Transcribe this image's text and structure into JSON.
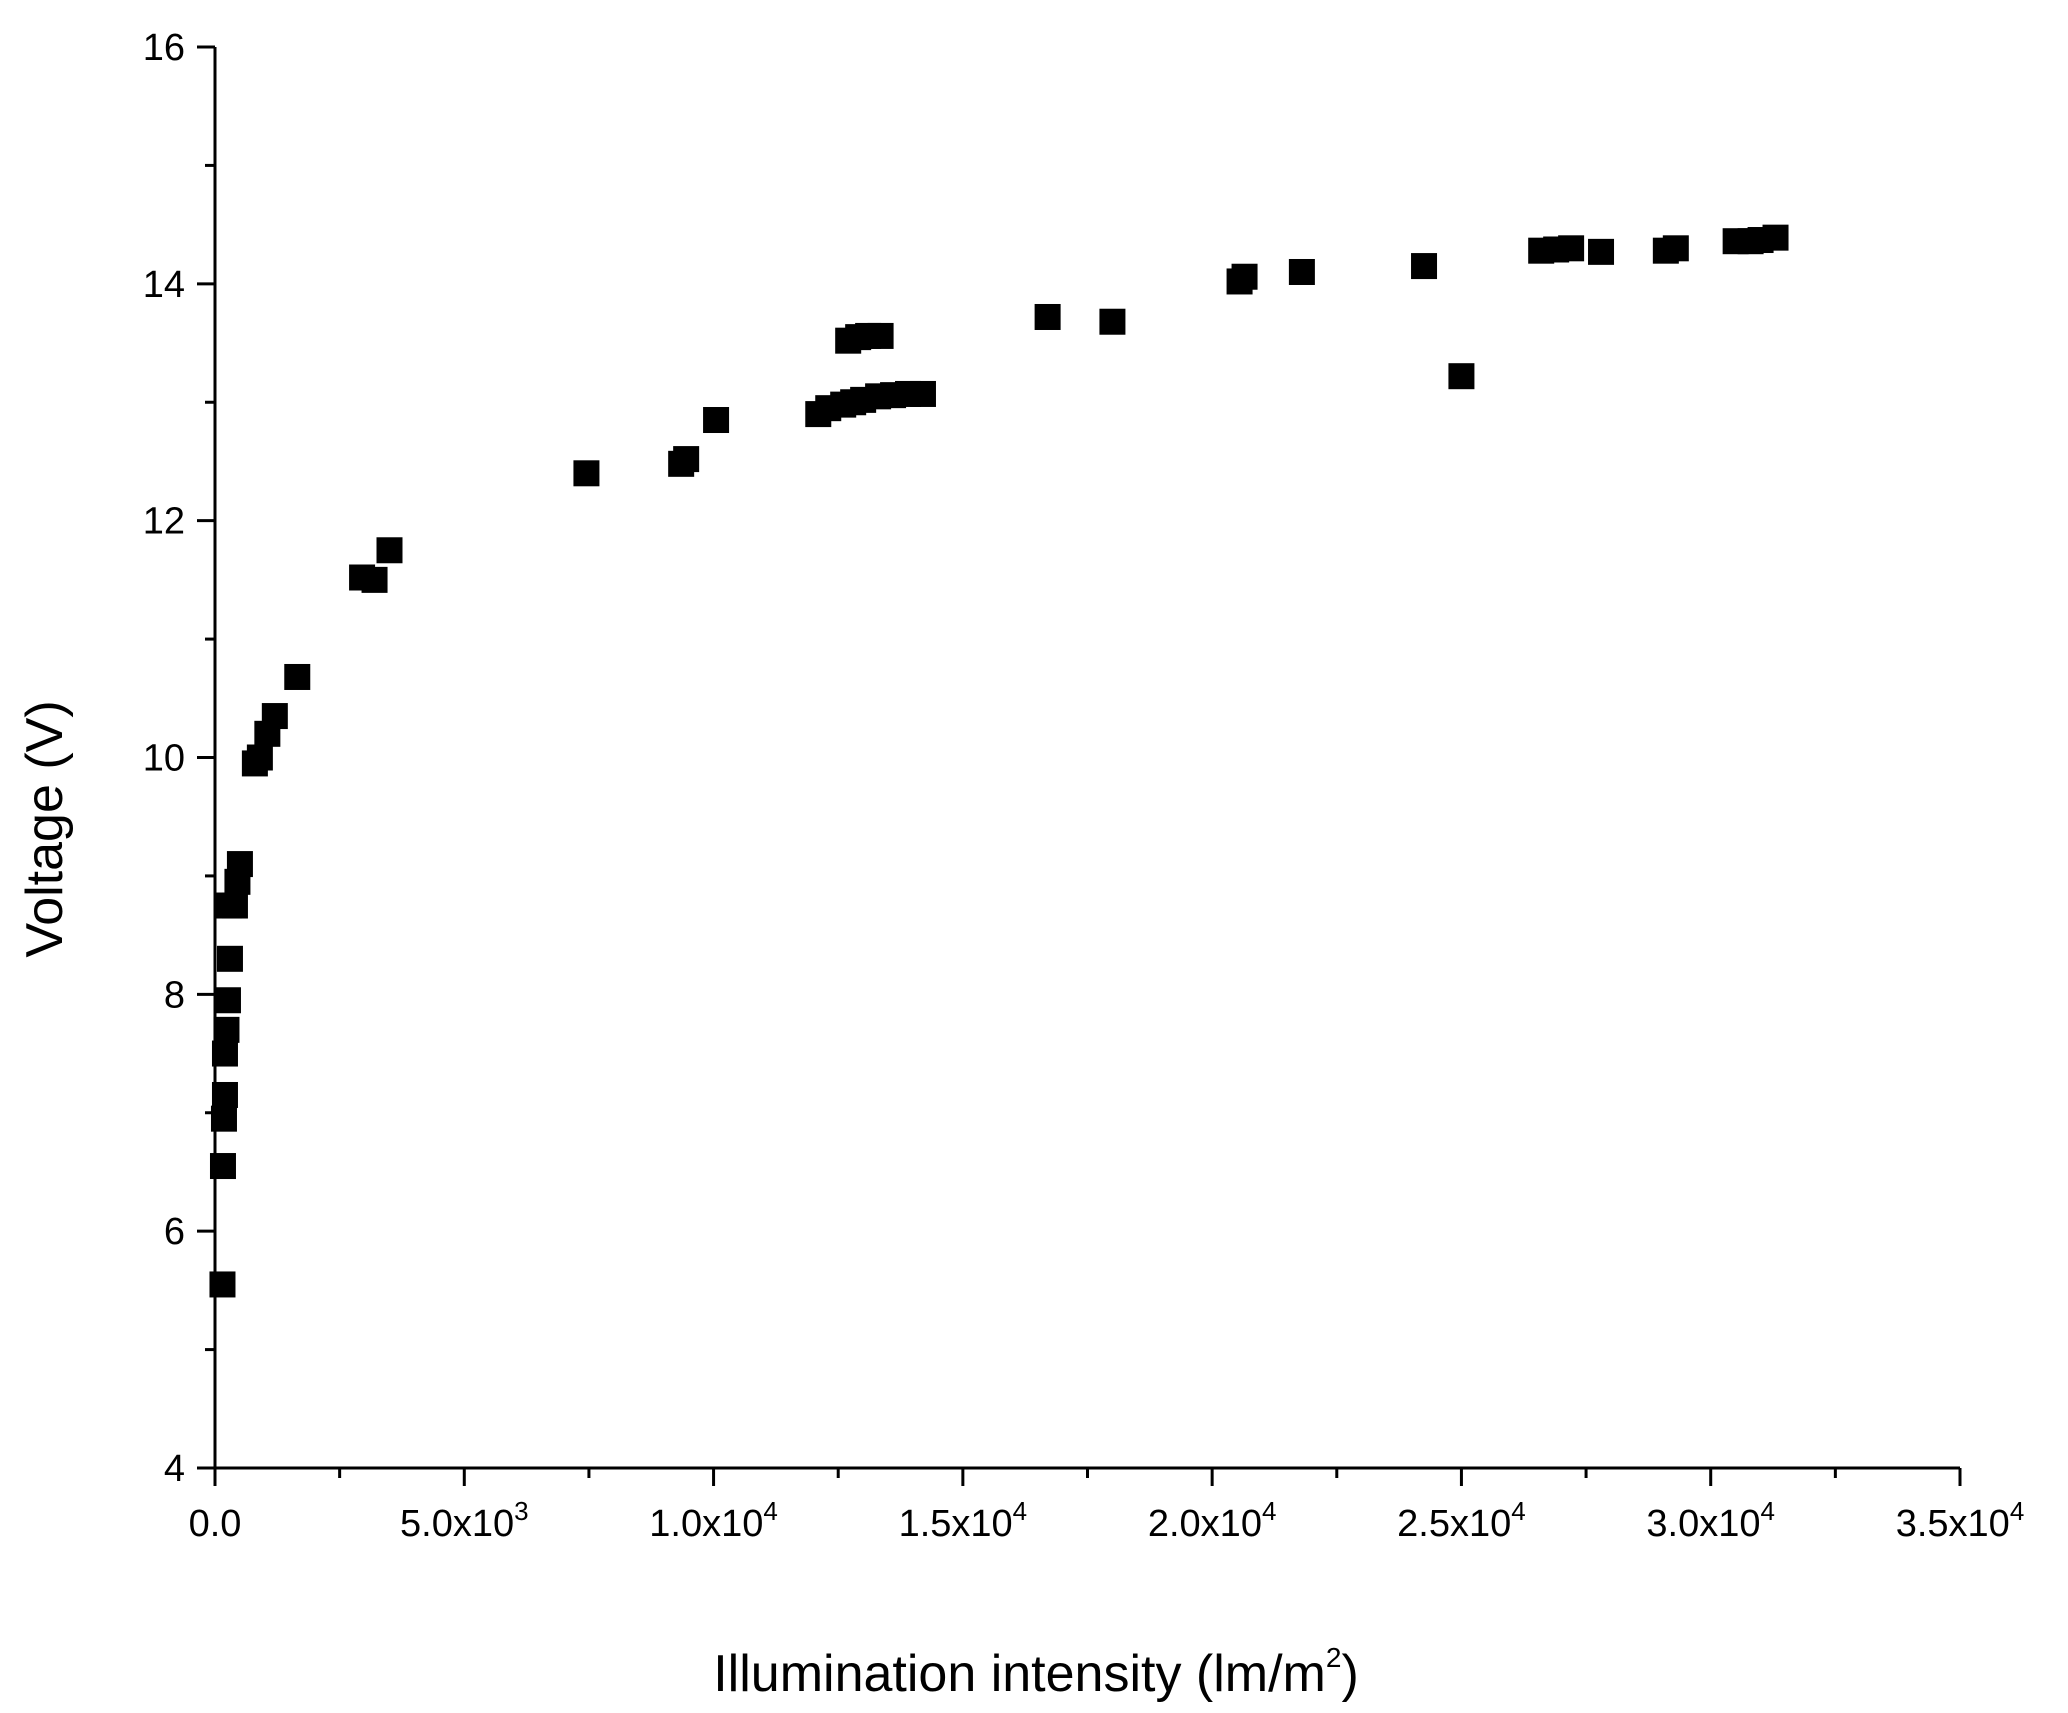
{
  "chart_data": {
    "type": "scatter",
    "title": "",
    "xlabel": "Illumination intensity (lm/m",
    "xlabel_sup": "2",
    "xlabel_suffix": ")",
    "ylabel": "Voltage (V)",
    "xlim": [
      0,
      35000
    ],
    "ylim": [
      4,
      16
    ],
    "grid": false,
    "marker": "square",
    "marker_color": "#000000",
    "x_ticks": [
      {
        "value": 0,
        "label": "0.0",
        "exp": ""
      },
      {
        "value": 5000,
        "label": "5.0x10",
        "exp": "3"
      },
      {
        "value": 10000,
        "label": "1.0x10",
        "exp": "4"
      },
      {
        "value": 15000,
        "label": "1.5x10",
        "exp": "4"
      },
      {
        "value": 20000,
        "label": "2.0x10",
        "exp": "4"
      },
      {
        "value": 25000,
        "label": "2.5x10",
        "exp": "4"
      },
      {
        "value": 30000,
        "label": "3.0x10",
        "exp": "4"
      },
      {
        "value": 35000,
        "label": "3.5x10",
        "exp": "4"
      }
    ],
    "y_ticks": [
      {
        "value": 4,
        "label": "4"
      },
      {
        "value": 6,
        "label": "6"
      },
      {
        "value": 8,
        "label": "8"
      },
      {
        "value": 10,
        "label": "10"
      },
      {
        "value": 12,
        "label": "12"
      },
      {
        "value": 14,
        "label": "14"
      },
      {
        "value": 16,
        "label": "16"
      }
    ],
    "points": [
      [
        150,
        5.55
      ],
      [
        160,
        6.55
      ],
      [
        180,
        6.95
      ],
      [
        200,
        7.15
      ],
      [
        200,
        7.5
      ],
      [
        230,
        7.7
      ],
      [
        260,
        7.95
      ],
      [
        300,
        8.3
      ],
      [
        280,
        8.75
      ],
      [
        400,
        8.75
      ],
      [
        450,
        8.95
      ],
      [
        500,
        9.1
      ],
      [
        800,
        9.95
      ],
      [
        900,
        10.0
      ],
      [
        1050,
        10.2
      ],
      [
        1200,
        10.35
      ],
      [
        1650,
        10.68
      ],
      [
        2950,
        11.52
      ],
      [
        3200,
        11.5
      ],
      [
        3500,
        11.75
      ],
      [
        7450,
        12.4
      ],
      [
        9350,
        12.48
      ],
      [
        9450,
        12.52
      ],
      [
        10050,
        12.85
      ],
      [
        12100,
        12.9
      ],
      [
        12300,
        12.95
      ],
      [
        12600,
        12.98
      ],
      [
        12800,
        13.0
      ],
      [
        13000,
        13.02
      ],
      [
        13300,
        13.05
      ],
      [
        13600,
        13.06
      ],
      [
        13900,
        13.07
      ],
      [
        14200,
        13.07
      ],
      [
        12700,
        13.52
      ],
      [
        12900,
        13.55
      ],
      [
        13100,
        13.56
      ],
      [
        13350,
        13.56
      ],
      [
        16700,
        13.72
      ],
      [
        18000,
        13.68
      ],
      [
        20550,
        14.02
      ],
      [
        20650,
        14.06
      ],
      [
        21800,
        14.1
      ],
      [
        24250,
        14.15
      ],
      [
        25000,
        13.22
      ],
      [
        26600,
        14.28
      ],
      [
        26900,
        14.29
      ],
      [
        27200,
        14.3
      ],
      [
        27800,
        14.27
      ],
      [
        29100,
        14.28
      ],
      [
        29300,
        14.3
      ],
      [
        30500,
        14.36
      ],
      [
        30800,
        14.36
      ],
      [
        31000,
        14.37
      ],
      [
        31300,
        14.39
      ]
    ]
  }
}
